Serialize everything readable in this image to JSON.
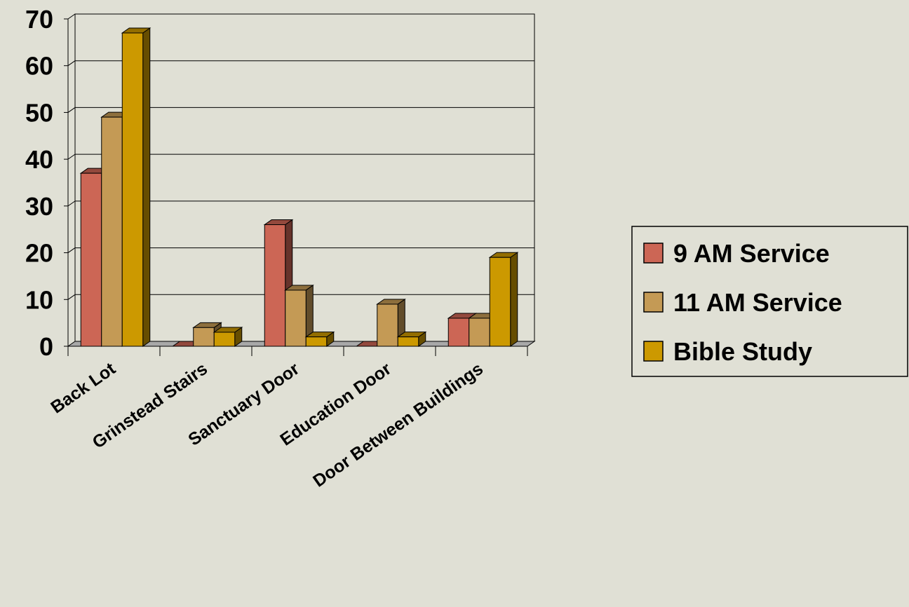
{
  "chart_data": {
    "type": "bar",
    "title": "",
    "xlabel": "",
    "ylabel": "",
    "categories": [
      "Back Lot",
      "Grinstead Stairs",
      "Sanctuary Door",
      "Education Door",
      "Door Between Buildings"
    ],
    "ylim": [
      0,
      70
    ],
    "yticks": [
      "0",
      "10",
      "20",
      "30",
      "40",
      "50",
      "60",
      "70"
    ],
    "grid": true,
    "legend_position": "right",
    "series": [
      {
        "name": "9 AM Service",
        "color": "#cc6655",
        "values": [
          37,
          0,
          26,
          0,
          6
        ]
      },
      {
        "name": "11 AM Service",
        "color": "#c49a55",
        "values": [
          49,
          4,
          12,
          9,
          6
        ]
      },
      {
        "name": "Bible Study",
        "color": "#cc9900",
        "values": [
          67,
          3,
          2,
          2,
          19
        ]
      }
    ]
  }
}
